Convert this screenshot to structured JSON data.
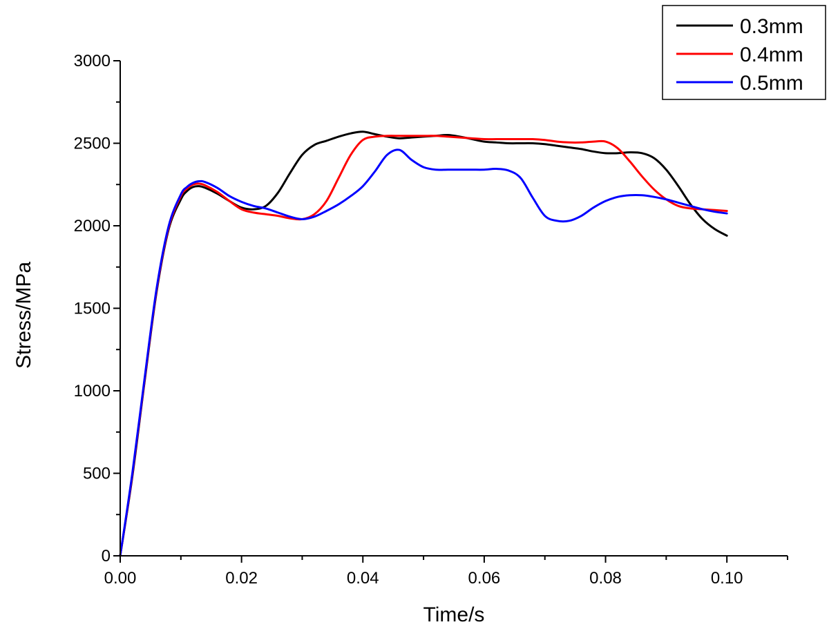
{
  "chart_data": {
    "type": "line",
    "title": "",
    "xlabel": "Time/s",
    "ylabel": "Stress/MPa",
    "xlim": [
      0,
      0.11
    ],
    "ylim": [
      0,
      3000
    ],
    "x_ticks": [
      0.0,
      0.02,
      0.04,
      0.06,
      0.08,
      0.1
    ],
    "x_tick_labels": [
      "0.00",
      "0.02",
      "0.04",
      "0.06",
      "0.08",
      "0.10"
    ],
    "x_minor_ticks": [
      0.01,
      0.03,
      0.05,
      0.07,
      0.09,
      0.11
    ],
    "y_ticks": [
      0,
      500,
      1000,
      1500,
      2000,
      2500,
      3000
    ],
    "y_tick_labels": [
      "0",
      "500",
      "1000",
      "1500",
      "2000",
      "2500",
      "3000"
    ],
    "grid": false,
    "legend_position": "top-right",
    "series": [
      {
        "name": "0.3mm",
        "color": "#000000",
        "x": [
          0.0,
          0.002,
          0.004,
          0.006,
          0.008,
          0.01,
          0.011,
          0.012,
          0.013,
          0.014,
          0.016,
          0.018,
          0.02,
          0.022,
          0.024,
          0.026,
          0.028,
          0.03,
          0.032,
          0.034,
          0.036,
          0.038,
          0.04,
          0.042,
          0.044,
          0.046,
          0.048,
          0.05,
          0.052,
          0.054,
          0.056,
          0.058,
          0.06,
          0.062,
          0.064,
          0.066,
          0.068,
          0.07,
          0.072,
          0.074,
          0.076,
          0.078,
          0.08,
          0.082,
          0.084,
          0.086,
          0.088,
          0.09,
          0.092,
          0.094,
          0.096,
          0.098,
          0.1
        ],
        "y": [
          0,
          480,
          1050,
          1600,
          1980,
          2160,
          2210,
          2235,
          2240,
          2230,
          2195,
          2150,
          2110,
          2100,
          2120,
          2200,
          2320,
          2430,
          2490,
          2515,
          2540,
          2560,
          2570,
          2555,
          2540,
          2530,
          2535,
          2540,
          2545,
          2550,
          2540,
          2525,
          2510,
          2505,
          2500,
          2500,
          2500,
          2495,
          2485,
          2475,
          2465,
          2450,
          2440,
          2440,
          2445,
          2440,
          2410,
          2340,
          2240,
          2130,
          2040,
          1980,
          1940
        ]
      },
      {
        "name": "0.4mm",
        "color": "#ff0000",
        "x": [
          0.0,
          0.002,
          0.004,
          0.006,
          0.008,
          0.01,
          0.011,
          0.012,
          0.013,
          0.014,
          0.016,
          0.018,
          0.02,
          0.022,
          0.024,
          0.026,
          0.028,
          0.03,
          0.032,
          0.034,
          0.036,
          0.038,
          0.04,
          0.042,
          0.044,
          0.046,
          0.048,
          0.05,
          0.052,
          0.054,
          0.056,
          0.058,
          0.06,
          0.062,
          0.064,
          0.066,
          0.068,
          0.07,
          0.072,
          0.074,
          0.076,
          0.078,
          0.08,
          0.082,
          0.084,
          0.086,
          0.088,
          0.09,
          0.092,
          0.094,
          0.096,
          0.098,
          0.1
        ],
        "y": [
          0,
          490,
          1060,
          1610,
          1990,
          2180,
          2225,
          2250,
          2255,
          2245,
          2205,
          2150,
          2100,
          2080,
          2070,
          2060,
          2045,
          2040,
          2070,
          2150,
          2290,
          2430,
          2520,
          2540,
          2545,
          2545,
          2545,
          2545,
          2545,
          2540,
          2535,
          2530,
          2525,
          2525,
          2525,
          2525,
          2525,
          2520,
          2510,
          2505,
          2505,
          2510,
          2510,
          2470,
          2390,
          2300,
          2220,
          2160,
          2120,
          2105,
          2100,
          2095,
          2090
        ]
      },
      {
        "name": "0.5mm",
        "color": "#0000ff",
        "x": [
          0.0,
          0.002,
          0.004,
          0.006,
          0.008,
          0.01,
          0.011,
          0.012,
          0.013,
          0.014,
          0.016,
          0.018,
          0.02,
          0.022,
          0.024,
          0.026,
          0.028,
          0.03,
          0.032,
          0.034,
          0.036,
          0.038,
          0.04,
          0.042,
          0.044,
          0.046,
          0.048,
          0.05,
          0.052,
          0.054,
          0.056,
          0.058,
          0.06,
          0.062,
          0.064,
          0.066,
          0.068,
          0.07,
          0.072,
          0.074,
          0.076,
          0.078,
          0.08,
          0.082,
          0.084,
          0.086,
          0.088,
          0.09,
          0.092,
          0.094,
          0.096,
          0.098,
          0.1
        ],
        "y": [
          0,
          500,
          1070,
          1620,
          2000,
          2190,
          2235,
          2260,
          2270,
          2265,
          2230,
          2180,
          2145,
          2120,
          2105,
          2080,
          2055,
          2040,
          2055,
          2090,
          2130,
          2180,
          2240,
          2330,
          2430,
          2460,
          2400,
          2355,
          2340,
          2340,
          2340,
          2340,
          2340,
          2345,
          2335,
          2290,
          2170,
          2060,
          2030,
          2030,
          2060,
          2110,
          2150,
          2175,
          2185,
          2185,
          2175,
          2160,
          2140,
          2120,
          2100,
          2085,
          2075
        ]
      }
    ]
  }
}
